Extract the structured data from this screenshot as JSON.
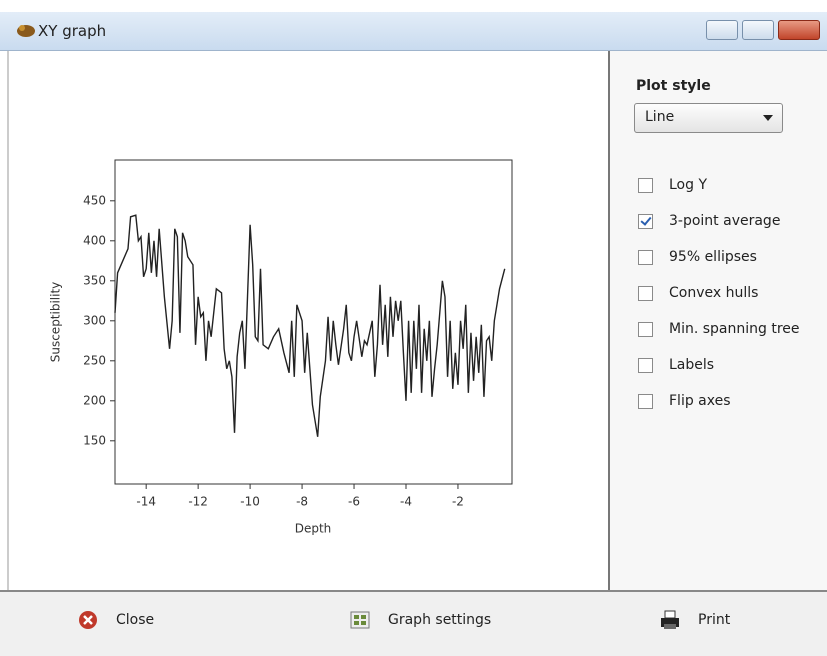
{
  "window": {
    "title": "XY graph"
  },
  "chart_data": {
    "type": "line",
    "x_label": "Depth",
    "y_label": "Susceptibility",
    "xlim": [
      -15.2,
      0.08
    ],
    "ylim": [
      96,
      501
    ],
    "xticks": [
      -14,
      -12,
      -10,
      -8,
      -6,
      -4,
      -2
    ],
    "yticks": [
      150,
      200,
      250,
      300,
      350,
      400,
      450
    ],
    "color": "#222222",
    "x": [
      -15.2,
      -15.1,
      -14.9,
      -14.7,
      -14.6,
      -14.4,
      -14.3,
      -14.2,
      -14.1,
      -14.0,
      -13.9,
      -13.8,
      -13.7,
      -13.6,
      -13.5,
      -13.3,
      -13.1,
      -13.0,
      -12.9,
      -12.8,
      -12.7,
      -12.6,
      -12.5,
      -12.4,
      -12.2,
      -12.1,
      -12.0,
      -11.9,
      -11.8,
      -11.7,
      -11.6,
      -11.5,
      -11.3,
      -11.1,
      -11.0,
      -10.9,
      -10.8,
      -10.7,
      -10.6,
      -10.5,
      -10.4,
      -10.3,
      -10.2,
      -10.1,
      -10.0,
      -9.9,
      -9.8,
      -9.7,
      -9.6,
      -9.5,
      -9.3,
      -9.1,
      -8.9,
      -8.7,
      -8.5,
      -8.4,
      -8.3,
      -8.2,
      -8.0,
      -7.9,
      -7.8,
      -7.6,
      -7.4,
      -7.3,
      -7.1,
      -7.0,
      -6.9,
      -6.8,
      -6.7,
      -6.6,
      -6.4,
      -6.3,
      -6.2,
      -6.1,
      -6.0,
      -5.9,
      -5.7,
      -5.6,
      -5.5,
      -5.3,
      -5.2,
      -5.1,
      -5.0,
      -4.9,
      -4.8,
      -4.7,
      -4.6,
      -4.5,
      -4.4,
      -4.3,
      -4.2,
      -4.1,
      -4.0,
      -3.9,
      -3.8,
      -3.7,
      -3.6,
      -3.5,
      -3.4,
      -3.3,
      -3.2,
      -3.1,
      -3.0,
      -2.9,
      -2.8,
      -2.6,
      -2.5,
      -2.4,
      -2.3,
      -2.2,
      -2.1,
      -2.0,
      -1.9,
      -1.8,
      -1.7,
      -1.6,
      -1.5,
      -1.4,
      -1.3,
      -1.2,
      -1.1,
      -1.0,
      -0.9,
      -0.8,
      -0.7,
      -0.6,
      -0.4,
      -0.2
    ],
    "values": [
      310,
      360,
      375,
      390,
      430,
      432,
      400,
      405,
      355,
      365,
      410,
      360,
      400,
      355,
      415,
      330,
      265,
      300,
      415,
      405,
      285,
      410,
      400,
      380,
      370,
      270,
      330,
      305,
      310,
      250,
      300,
      280,
      340,
      335,
      265,
      240,
      250,
      230,
      160,
      255,
      285,
      300,
      240,
      330,
      420,
      370,
      280,
      275,
      365,
      270,
      265,
      280,
      290,
      260,
      235,
      300,
      230,
      320,
      300,
      235,
      285,
      195,
      155,
      205,
      250,
      305,
      250,
      300,
      270,
      245,
      290,
      320,
      260,
      250,
      280,
      300,
      255,
      275,
      270,
      300,
      230,
      270,
      345,
      270,
      320,
      255,
      330,
      280,
      325,
      300,
      325,
      260,
      200,
      300,
      210,
      300,
      240,
      320,
      210,
      290,
      250,
      300,
      205,
      240,
      270,
      350,
      330,
      230,
      300,
      215,
      260,
      220,
      300,
      265,
      320,
      210,
      285,
      225,
      280,
      235,
      295,
      205,
      275,
      280,
      250,
      300,
      340,
      365
    ]
  },
  "sidebar": {
    "plot_style_label": "Plot style",
    "plot_style_value": "Line",
    "options": [
      {
        "label": "Log Y",
        "checked": false
      },
      {
        "label": "3-point average",
        "checked": true
      },
      {
        "label": "95% ellipses",
        "checked": false
      },
      {
        "label": "Convex hulls",
        "checked": false
      },
      {
        "label": "Min. spanning tree",
        "checked": false
      },
      {
        "label": "Labels",
        "checked": false
      },
      {
        "label": "Flip axes",
        "checked": false
      }
    ]
  },
  "buttons": [
    {
      "label": "Close"
    },
    {
      "label": "Graph settings"
    },
    {
      "label": "Print"
    }
  ]
}
